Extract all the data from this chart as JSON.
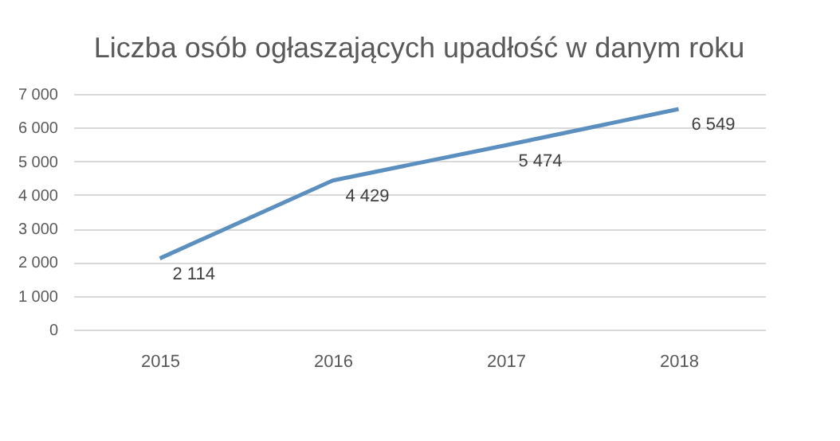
{
  "chart_data": {
    "type": "line",
    "title": "Liczba osób ogłaszających upadłość w danym roku",
    "categories": [
      "2015",
      "2016",
      "2017",
      "2018"
    ],
    "series": [
      {
        "color": "#5b8fc0",
        "values": [
          2114,
          4429,
          5474,
          6549
        ]
      }
    ],
    "value_labels": [
      "2 114",
      "4 429",
      "5 474",
      "6 549"
    ],
    "ylim": [
      0,
      7000
    ],
    "yticks": [
      0,
      {
        "value": 1000,
        "label": "1 000"
      },
      {
        "value": 2000,
        "label": "2 000"
      },
      {
        "value": 3000,
        "label": "3 000"
      },
      {
        "value": 4000,
        "label": "4 000"
      },
      {
        "value": 5000,
        "label": "5 000"
      },
      {
        "value": 6000,
        "label": "6 000"
      },
      {
        "value": 7000,
        "label": "7 000"
      }
    ],
    "grid": "y",
    "legend": false,
    "marker": "none",
    "line_style": "solid"
  }
}
